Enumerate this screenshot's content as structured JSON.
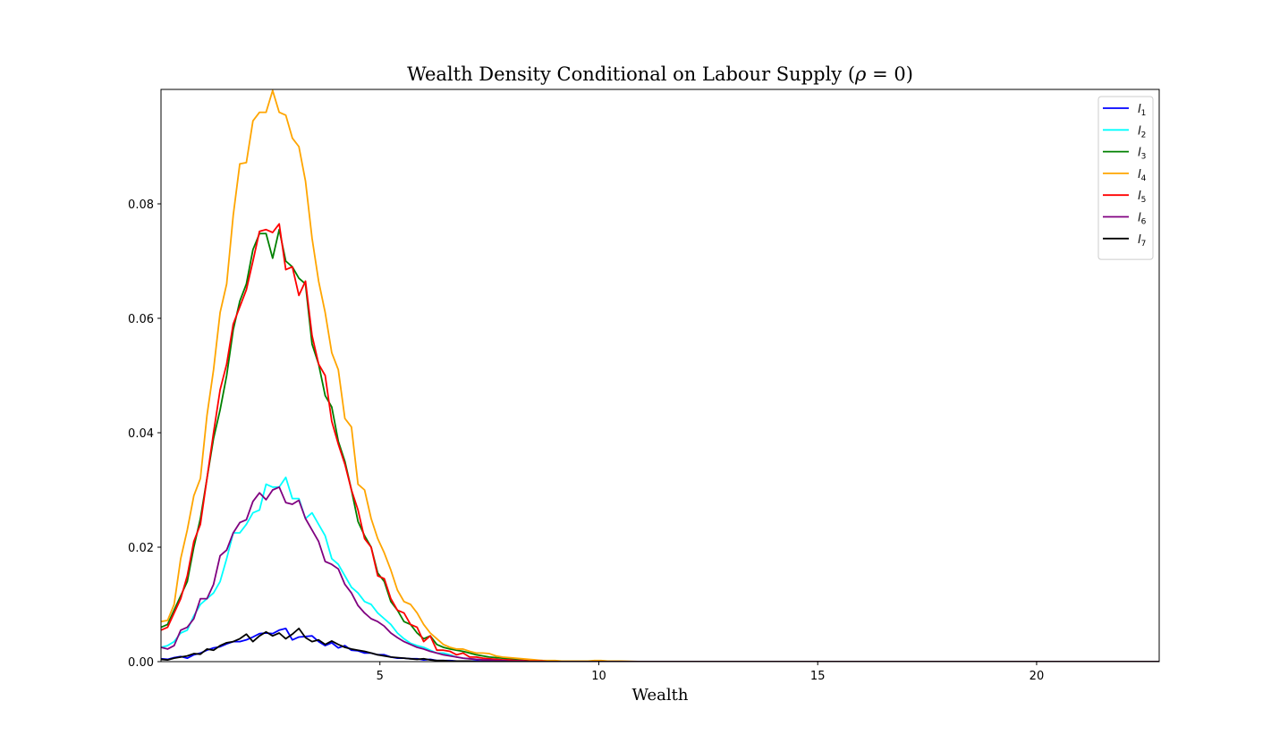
{
  "chart_data": {
    "type": "line",
    "title": "Wealth Density Conditional on Labour Supply (ρ = 0)",
    "title_main": "Wealth Density Conditional on Labour Supply (",
    "title_rho": "ρ",
    "title_eq": " = 0)",
    "xlabel": "Wealth",
    "ylabel": "",
    "xlim": [
      0,
      22.8
    ],
    "ylim": [
      0,
      0.1
    ],
    "xticks": [
      5,
      10,
      15,
      20
    ],
    "xtick_labels": [
      "5",
      "10",
      "15",
      "20"
    ],
    "yticks": [
      0.0,
      0.02,
      0.04,
      0.06,
      0.08
    ],
    "ytick_labels": [
      "0.00",
      "0.02",
      "0.04",
      "0.06",
      "0.08"
    ],
    "grid": false,
    "legend_position": "top-right",
    "x": [
      0.0,
      0.15,
      0.3,
      0.45,
      0.6,
      0.75,
      0.9,
      1.05,
      1.2,
      1.35,
      1.5,
      1.65,
      1.8,
      1.95,
      2.1,
      2.25,
      2.4,
      2.55,
      2.7,
      2.85,
      3.0,
      3.15,
      3.3,
      3.45,
      3.6,
      3.75,
      3.9,
      4.05,
      4.2,
      4.35,
      4.5,
      4.65,
      4.8,
      4.95,
      5.1,
      5.25,
      5.4,
      5.55,
      5.7,
      5.85,
      6.0,
      6.15,
      6.3,
      6.45,
      6.6,
      6.75,
      6.9,
      7.05,
      7.2,
      7.35,
      7.5,
      7.65,
      7.8,
      7.95,
      8.1,
      8.25,
      8.4,
      8.55,
      8.7,
      8.85,
      9.0,
      9.15,
      9.3,
      9.45,
      9.6,
      9.75,
      9.9,
      10.05,
      10.2,
      10.5,
      11.0,
      12.0,
      13.0,
      14.0,
      15.0,
      16.0,
      17.0,
      18.0,
      19.0,
      20.0,
      21.0,
      22.0,
      22.8
    ],
    "series": [
      {
        "name": "l1",
        "label_letter": "l",
        "label_sub": "1",
        "color": "#0000ff",
        "values": [
          0.0005,
          0.0004,
          0.0007,
          0.0009,
          0.0006,
          0.0012,
          0.0015,
          0.002,
          0.0024,
          0.0026,
          0.0031,
          0.0035,
          0.0035,
          0.0038,
          0.0043,
          0.0049,
          0.005,
          0.0049,
          0.0055,
          0.0058,
          0.0038,
          0.0043,
          0.0044,
          0.0045,
          0.0035,
          0.0028,
          0.0033,
          0.0024,
          0.0028,
          0.002,
          0.0019,
          0.0015,
          0.0015,
          0.0012,
          0.0012,
          0.0008,
          0.0006,
          0.0006,
          0.0005,
          0.0005,
          0.0003,
          0.0004,
          0.0002,
          0.0002,
          0.0002,
          0.0001,
          0.0001,
          0.0001,
          0.0001,
          0.0001,
          0.0001,
          0,
          0,
          0,
          0,
          0,
          0,
          0,
          0,
          0,
          0,
          0,
          0,
          0,
          0,
          0,
          0,
          0,
          0,
          0,
          0,
          0,
          0,
          0,
          0,
          0,
          0,
          0,
          0,
          0,
          0,
          0,
          0
        ]
      },
      {
        "name": "l2",
        "label_letter": "l",
        "label_sub": "2",
        "color": "#00ffff",
        "values": [
          0.0025,
          0.0028,
          0.0035,
          0.005,
          0.0055,
          0.008,
          0.01,
          0.011,
          0.012,
          0.014,
          0.018,
          0.0225,
          0.0225,
          0.024,
          0.026,
          0.0265,
          0.031,
          0.0305,
          0.0305,
          0.0322,
          0.0285,
          0.0285,
          0.025,
          0.026,
          0.024,
          0.022,
          0.018,
          0.017,
          0.015,
          0.013,
          0.012,
          0.0105,
          0.01,
          0.0085,
          0.0075,
          0.0065,
          0.005,
          0.004,
          0.0032,
          0.0028,
          0.0025,
          0.002,
          0.0015,
          0.0015,
          0.0012,
          0.0008,
          0.0006,
          0.0005,
          0.0004,
          0.0003,
          0.0003,
          0.0002,
          0.0002,
          0.0001,
          0.0001,
          0.0001,
          0,
          0,
          0,
          0,
          0,
          0,
          0,
          0,
          0,
          0,
          0,
          0,
          0,
          0,
          0,
          0,
          0,
          0,
          0,
          0,
          0,
          0,
          0,
          0,
          0,
          0,
          0
        ]
      },
      {
        "name": "l3",
        "label_letter": "l",
        "label_sub": "3",
        "color": "#008000",
        "values": [
          0.006,
          0.0065,
          0.009,
          0.0115,
          0.014,
          0.02,
          0.025,
          0.032,
          0.039,
          0.044,
          0.05,
          0.058,
          0.063,
          0.066,
          0.072,
          0.0748,
          0.0748,
          0.0705,
          0.0755,
          0.07,
          0.069,
          0.067,
          0.066,
          0.0555,
          0.052,
          0.0465,
          0.0445,
          0.0385,
          0.035,
          0.03,
          0.0245,
          0.022,
          0.02,
          0.0155,
          0.014,
          0.0105,
          0.009,
          0.007,
          0.0065,
          0.005,
          0.004,
          0.0045,
          0.003,
          0.0025,
          0.0022,
          0.002,
          0.0018,
          0.0015,
          0.0012,
          0.001,
          0.0008,
          0.0007,
          0.0006,
          0.0005,
          0.0004,
          0.0003,
          0.0003,
          0.0002,
          0.0002,
          0.0001,
          0.0001,
          0.0001,
          0.0001,
          0,
          0,
          0,
          0,
          0,
          0,
          0,
          0,
          0,
          0,
          0,
          0,
          0,
          0,
          0,
          0,
          0,
          0,
          0,
          0
        ]
      },
      {
        "name": "l4",
        "label_letter": "l",
        "label_sub": "4",
        "color": "#ffa500",
        "values": [
          0.007,
          0.0072,
          0.01,
          0.018,
          0.023,
          0.029,
          0.032,
          0.043,
          0.051,
          0.061,
          0.066,
          0.078,
          0.087,
          0.0872,
          0.0945,
          0.096,
          0.096,
          0.0998,
          0.096,
          0.0955,
          0.0915,
          0.09,
          0.084,
          0.074,
          0.0665,
          0.061,
          0.054,
          0.051,
          0.0425,
          0.041,
          0.031,
          0.03,
          0.025,
          0.0215,
          0.019,
          0.016,
          0.0125,
          0.0105,
          0.01,
          0.0085,
          0.0065,
          0.005,
          0.004,
          0.003,
          0.0025,
          0.0022,
          0.0022,
          0.0018,
          0.0015,
          0.0015,
          0.0014,
          0.001,
          0.0008,
          0.0007,
          0.0006,
          0.0005,
          0.0004,
          0.0003,
          0.0002,
          0.0002,
          0.0002,
          0.0001,
          0.0001,
          0.0001,
          0.0001,
          0.0001,
          0.0002,
          0.0002,
          0.0001,
          0.0001,
          0,
          0,
          0,
          0,
          0,
          0,
          0,
          0,
          0,
          0,
          0,
          0,
          0
        ]
      },
      {
        "name": "l5",
        "label_letter": "l",
        "label_sub": "5",
        "color": "#ff0000",
        "values": [
          0.0055,
          0.006,
          0.0085,
          0.011,
          0.015,
          0.021,
          0.024,
          0.032,
          0.04,
          0.0475,
          0.052,
          0.059,
          0.062,
          0.065,
          0.07,
          0.0752,
          0.0755,
          0.075,
          0.0765,
          0.0685,
          0.069,
          0.064,
          0.0665,
          0.057,
          0.052,
          0.05,
          0.042,
          0.038,
          0.0345,
          0.03,
          0.0265,
          0.0215,
          0.02,
          0.015,
          0.0145,
          0.011,
          0.009,
          0.0085,
          0.0065,
          0.006,
          0.0035,
          0.0045,
          0.002,
          0.002,
          0.0018,
          0.0012,
          0.0015,
          0.0008,
          0.0008,
          0.0006,
          0.0005,
          0.0004,
          0.0003,
          0.0003,
          0.0002,
          0.0002,
          0.0001,
          0.0001,
          0.0001,
          0,
          0,
          0,
          0,
          0,
          0,
          0,
          0,
          0,
          0,
          0,
          0,
          0,
          0,
          0,
          0,
          0,
          0,
          0,
          0,
          0,
          0,
          0,
          0
        ]
      },
      {
        "name": "l6",
        "label_letter": "l",
        "label_sub": "6",
        "color": "#800080",
        "values": [
          0.0025,
          0.0022,
          0.0028,
          0.0055,
          0.006,
          0.0075,
          0.011,
          0.011,
          0.0135,
          0.0185,
          0.0195,
          0.0225,
          0.0243,
          0.0248,
          0.028,
          0.0295,
          0.0283,
          0.03,
          0.0305,
          0.0278,
          0.0275,
          0.0282,
          0.025,
          0.023,
          0.021,
          0.0175,
          0.017,
          0.0162,
          0.0135,
          0.012,
          0.0098,
          0.0085,
          0.0075,
          0.007,
          0.0062,
          0.005,
          0.0042,
          0.0035,
          0.003,
          0.0025,
          0.0022,
          0.0018,
          0.0015,
          0.0012,
          0.001,
          0.0008,
          0.0006,
          0.0005,
          0.0004,
          0.0003,
          0.0003,
          0.0002,
          0.0002,
          0.0001,
          0.0001,
          0.0001,
          0,
          0,
          0,
          0,
          0,
          0,
          0,
          0,
          0,
          0,
          0,
          0,
          0,
          0,
          0,
          0,
          0,
          0,
          0,
          0,
          0,
          0,
          0,
          0,
          0,
          0,
          0
        ]
      },
      {
        "name": "l7",
        "label_letter": "l",
        "label_sub": "7",
        "color": "#000000",
        "values": [
          0.0004,
          0.0003,
          0.0006,
          0.0008,
          0.001,
          0.0014,
          0.0013,
          0.0022,
          0.002,
          0.0028,
          0.0033,
          0.0035,
          0.004,
          0.0048,
          0.0035,
          0.0045,
          0.0052,
          0.0045,
          0.005,
          0.004,
          0.0048,
          0.0058,
          0.0042,
          0.0035,
          0.0038,
          0.003,
          0.0036,
          0.003,
          0.0025,
          0.0022,
          0.002,
          0.0018,
          0.0015,
          0.0012,
          0.001,
          0.0008,
          0.0007,
          0.0006,
          0.0005,
          0.0004,
          0.0005,
          0.0003,
          0.0002,
          0.0002,
          0.0001,
          0.0001,
          0.0001,
          0.0001,
          0,
          0,
          0,
          0,
          0,
          0,
          0,
          0,
          0,
          0,
          0,
          0,
          0,
          0,
          0,
          0,
          0,
          0,
          0,
          0,
          0,
          0,
          0,
          0,
          0,
          0,
          0,
          0,
          0,
          0,
          0,
          0,
          0,
          0,
          0
        ]
      }
    ]
  }
}
